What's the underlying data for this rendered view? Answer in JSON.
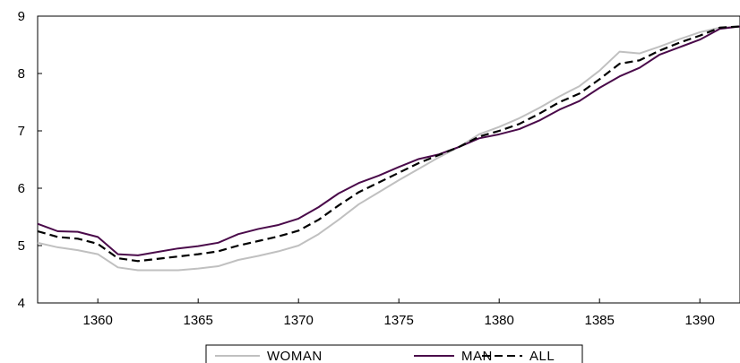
{
  "chart_data": {
    "type": "line",
    "title": "",
    "xlabel": "",
    "ylabel": "",
    "xlim": [
      1357,
      1392
    ],
    "ylim": [
      4,
      9
    ],
    "x_ticks": [
      1360,
      1365,
      1370,
      1375,
      1380,
      1385,
      1390
    ],
    "y_ticks": [
      4,
      5,
      6,
      7,
      8,
      9
    ],
    "grid": false,
    "legend_position": "bottom-center",
    "x": [
      1357,
      1358,
      1359,
      1360,
      1361,
      1362,
      1363,
      1364,
      1365,
      1366,
      1367,
      1368,
      1369,
      1370,
      1371,
      1372,
      1373,
      1374,
      1375,
      1376,
      1377,
      1378,
      1379,
      1380,
      1381,
      1382,
      1383,
      1384,
      1385,
      1386,
      1387,
      1388,
      1389,
      1390,
      1391,
      1392
    ],
    "series": [
      {
        "name": "WOMAN",
        "color": "#c0c0c0",
        "style": "solid",
        "values": [
          5.05,
          4.97,
          4.92,
          4.85,
          4.62,
          4.57,
          4.57,
          4.57,
          4.6,
          4.64,
          4.75,
          4.82,
          4.9,
          5.0,
          5.2,
          5.45,
          5.72,
          5.93,
          6.14,
          6.34,
          6.54,
          6.72,
          6.94,
          7.07,
          7.22,
          7.4,
          7.6,
          7.78,
          8.05,
          8.38,
          8.35,
          8.47,
          8.6,
          8.72,
          8.8,
          8.82
        ]
      },
      {
        "name": "MAN",
        "color": "#4a0a4a",
        "style": "solid",
        "values": [
          5.38,
          5.25,
          5.24,
          5.15,
          4.85,
          4.83,
          4.89,
          4.95,
          4.99,
          5.05,
          5.2,
          5.29,
          5.36,
          5.47,
          5.67,
          5.91,
          6.09,
          6.22,
          6.37,
          6.51,
          6.59,
          6.72,
          6.87,
          6.94,
          7.03,
          7.18,
          7.37,
          7.52,
          7.75,
          7.95,
          8.1,
          8.33,
          8.46,
          8.59,
          8.78,
          8.82
        ]
      },
      {
        "name": "ALL",
        "color": "#000000",
        "style": "dashed",
        "values": [
          5.25,
          5.15,
          5.12,
          5.03,
          4.78,
          4.73,
          4.77,
          4.81,
          4.85,
          4.9,
          5.0,
          5.08,
          5.16,
          5.26,
          5.45,
          5.7,
          5.93,
          6.1,
          6.27,
          6.44,
          6.58,
          6.72,
          6.9,
          7.0,
          7.12,
          7.3,
          7.5,
          7.65,
          7.9,
          8.17,
          8.23,
          8.4,
          8.54,
          8.66,
          8.8,
          8.82
        ]
      }
    ]
  }
}
